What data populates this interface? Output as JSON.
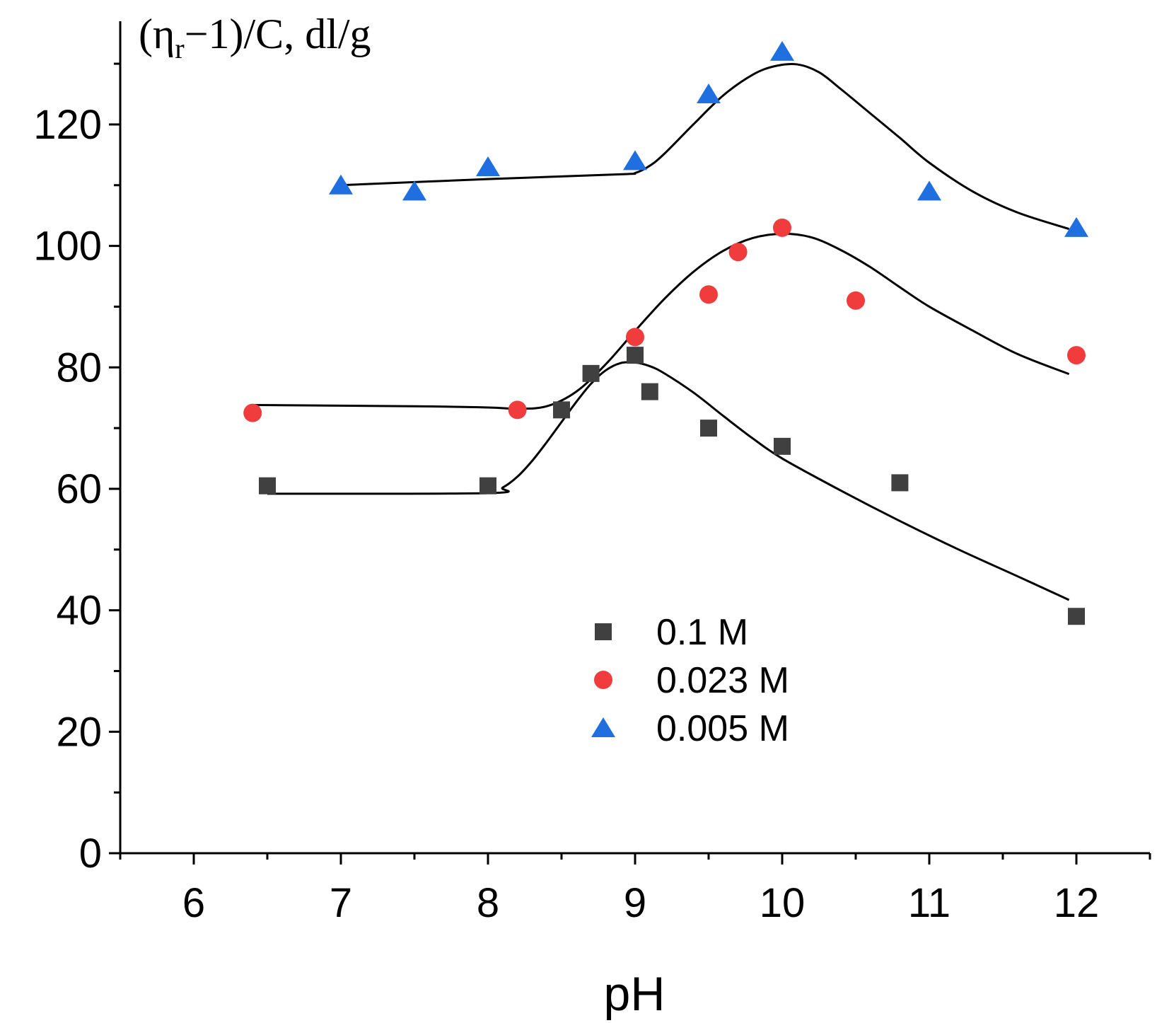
{
  "chart_data": {
    "type": "scatter",
    "xlabel": "pH",
    "ylabel": {
      "prefix": "(η",
      "sub": "r",
      "suffix": "−1)/C, dl/g"
    },
    "xlim": [
      5.5,
      12.5
    ],
    "ylim": [
      0,
      137
    ],
    "x_ticks": [
      6,
      7,
      8,
      9,
      10,
      11,
      12
    ],
    "x_tick_labels": [
      "6",
      "7",
      "8",
      "9",
      "10",
      "11",
      "12"
    ],
    "y_ticks": [
      0,
      20,
      40,
      60,
      80,
      100,
      120
    ],
    "y_tick_labels": [
      "0",
      "20",
      "40",
      "60",
      "80",
      "100",
      "120"
    ],
    "grid": false,
    "legend_position": "lower-middle",
    "series": [
      {
        "name": "0.1 M",
        "marker": "square",
        "color": "#404040",
        "x": [
          6.5,
          8.0,
          8.5,
          8.7,
          9.0,
          9.1,
          9.5,
          10.0,
          10.8,
          12.0
        ],
        "y": [
          60.5,
          60.5,
          73,
          79,
          82,
          76,
          70,
          67,
          61,
          39
        ],
        "fit": {
          "x": [
            6.5,
            8.0,
            8.1,
            8.2,
            8.3,
            8.4,
            8.5,
            8.6,
            8.7,
            8.8,
            8.9,
            9.0,
            9.1,
            9.2,
            9.4,
            9.6,
            9.8,
            10.0,
            10.4,
            10.8,
            11.2,
            11.6,
            11.95
          ],
          "y": [
            59.2,
            59.3,
            60.2,
            62.0,
            64.6,
            67.7,
            71.0,
            74.3,
            77.3,
            79.5,
            80.7,
            80.8,
            80.2,
            79.0,
            75.8,
            72.0,
            68.3,
            65.0,
            59.7,
            54.7,
            50.0,
            45.6,
            41.7
          ]
        }
      },
      {
        "name": "0.023 M",
        "marker": "circle",
        "color": "#f03c3c",
        "x": [
          6.4,
          8.2,
          9.0,
          9.5,
          9.7,
          10.0,
          10.5,
          12.0
        ],
        "y": [
          72.5,
          73,
          85,
          92,
          99,
          103,
          91,
          82
        ],
        "fit": {
          "x": [
            6.4,
            7.5,
            8.0,
            8.2,
            8.4,
            8.6,
            8.8,
            9.0,
            9.2,
            9.4,
            9.6,
            9.8,
            10.0,
            10.2,
            10.4,
            10.6,
            10.8,
            11.0,
            11.3,
            11.6,
            11.95
          ],
          "y": [
            73.8,
            73.6,
            73.4,
            73.2,
            73.6,
            76.0,
            80.5,
            86.0,
            91.3,
            95.8,
            99.2,
            101.3,
            102.0,
            101.4,
            99.3,
            96.5,
            93.2,
            90.0,
            86.0,
            82.2,
            78.9
          ]
        }
      },
      {
        "name": "0.005 M",
        "marker": "triangle",
        "color": "#1f6fe0",
        "x": [
          7.0,
          7.5,
          8.0,
          9.0,
          9.5,
          10.0,
          11.0,
          12.0
        ],
        "y": [
          110,
          109,
          113,
          114,
          125,
          132,
          109,
          103
        ],
        "fit": {
          "x": [
            7.0,
            8.0,
            8.9,
            9.0,
            9.1,
            9.2,
            9.4,
            9.6,
            9.8,
            9.95,
            10.1,
            10.25,
            10.4,
            10.6,
            10.8,
            11.0,
            11.3,
            11.6,
            11.95
          ],
          "y": [
            110.0,
            111.0,
            111.8,
            112.0,
            113.2,
            115.2,
            120.1,
            124.8,
            128.2,
            129.6,
            129.9,
            128.6,
            125.8,
            121.8,
            117.8,
            113.7,
            108.9,
            105.5,
            102.8
          ]
        }
      }
    ]
  }
}
